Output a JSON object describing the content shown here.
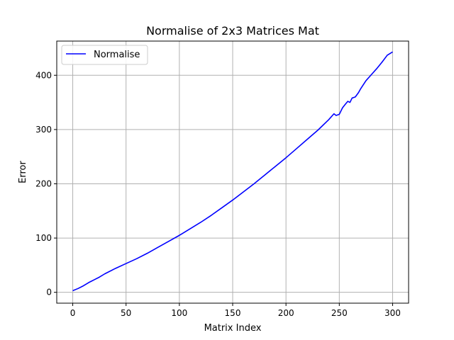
{
  "chart_data": {
    "type": "line",
    "title": "Normalise of 2x3 Matrices Mat",
    "xlabel": "Matrix Index",
    "ylabel": "Error",
    "xlim": [
      -15,
      315
    ],
    "ylim": [
      -20,
      463
    ],
    "xticks": [
      0,
      50,
      100,
      150,
      200,
      250,
      300
    ],
    "yticks": [
      0,
      100,
      200,
      300,
      400
    ],
    "grid": true,
    "legend_position": "top-left",
    "series": [
      {
        "name": "Normalise",
        "color": "#0000ff",
        "x": [
          0,
          5,
          10,
          15,
          20,
          25,
          30,
          40,
          50,
          60,
          70,
          80,
          90,
          100,
          110,
          120,
          130,
          140,
          150,
          160,
          170,
          180,
          190,
          200,
          210,
          220,
          230,
          240,
          245,
          247,
          250,
          253,
          255,
          258,
          260,
          262,
          265,
          268,
          270,
          275,
          280,
          285,
          290,
          295,
          300
        ],
        "y": [
          3,
          7,
          12,
          18,
          23,
          28,
          34,
          44,
          53,
          62,
          72,
          83,
          94,
          105,
          117,
          129,
          142,
          156,
          170,
          185,
          200,
          216,
          232,
          248,
          265,
          282,
          299,
          318,
          329,
          326,
          328,
          340,
          345,
          352,
          350,
          358,
          360,
          368,
          375,
          390,
          401,
          412,
          424,
          437,
          443
        ]
      }
    ]
  }
}
